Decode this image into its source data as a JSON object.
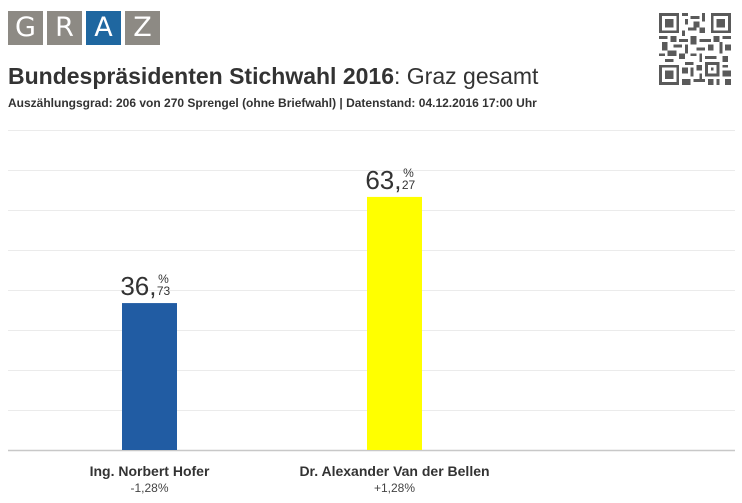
{
  "logo": {
    "letters": [
      "G",
      "R",
      "A",
      "Z"
    ],
    "accent_index": 2,
    "tile_color": "#8d8a84",
    "accent_color": "#1f67a0"
  },
  "qr_icon": "qr-code-icon",
  "header": {
    "title_bold": "Bundespräsidenten Stichwahl 2016",
    "title_rest": ": Graz gesamt",
    "subtitle": "Auszählungsgrad: 206 von 270 Sprengel (ohne Briefwahl) | Datenstand: 04.12.2016 17:00 Uhr"
  },
  "chart_data": {
    "type": "bar",
    "title": "Bundespräsidenten Stichwahl 2016: Graz gesamt",
    "xlabel": "",
    "ylabel": "",
    "ylim": [
      0,
      80
    ],
    "grid": true,
    "y_gridline_step": 10,
    "categories": [
      "Ing. Norbert Hofer",
      "Dr. Alexander Van der Bellen"
    ],
    "values": [
      36.73,
      63.27
    ],
    "value_labels": [
      {
        "integer": "36",
        "decimal": "73",
        "unit": "%"
      },
      {
        "integer": "63",
        "decimal": "27",
        "unit": "%"
      }
    ],
    "changes": [
      "-1,28%",
      "+1,28%"
    ],
    "colors": [
      "#215ca3",
      "#ffff00"
    ]
  }
}
